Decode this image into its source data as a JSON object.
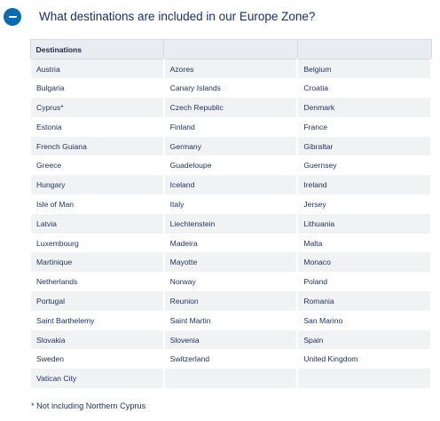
{
  "faq": {
    "question": "What destinations are included in our Europe Zone?",
    "footnote": "* Not including Northern Cyprus"
  },
  "table": {
    "header": "Destinations",
    "rows": [
      [
        "Austria",
        "Azores",
        "Belgium"
      ],
      [
        "Bulgaria",
        "Canary Islands",
        "Croatia"
      ],
      [
        "Cyprus*",
        "Czech Republic",
        "Denmark"
      ],
      [
        "Estonia",
        "Finland",
        "France"
      ],
      [
        "French Guiana",
        "Germany",
        "Gibraltar"
      ],
      [
        "Greece",
        "Guadeloupe",
        "Guernsey"
      ],
      [
        "Hungary",
        "Iceland",
        "Ireland"
      ],
      [
        "Isle of Man",
        "Italy",
        "Jersey"
      ],
      [
        "Latvia",
        "Liechtenstein",
        "Lithuania"
      ],
      [
        "Luxembourg",
        "Madeira",
        "Malta"
      ],
      [
        "Martinique",
        "Mayotte",
        "Monaco"
      ],
      [
        "Netherlands",
        "Norway",
        "Poland"
      ],
      [
        "Portugal",
        "Reunion",
        "Romania"
      ],
      [
        "Saint Barthelemy",
        "Saint Martin",
        "San Marino"
      ],
      [
        "Slovakia",
        "Slovenia",
        "Spain"
      ],
      [
        "Sweden",
        "Switzerland",
        "United Kingdom"
      ],
      [
        "Vatican City",
        "",
        ""
      ]
    ]
  },
  "colors": {
    "accent": "#0a6bb0",
    "header_bg": "#e9ecf0",
    "stripe_bg": "#f1f2f4",
    "text": "#1d2f5e"
  },
  "icons": {
    "toggle": "minus-circle-icon"
  }
}
